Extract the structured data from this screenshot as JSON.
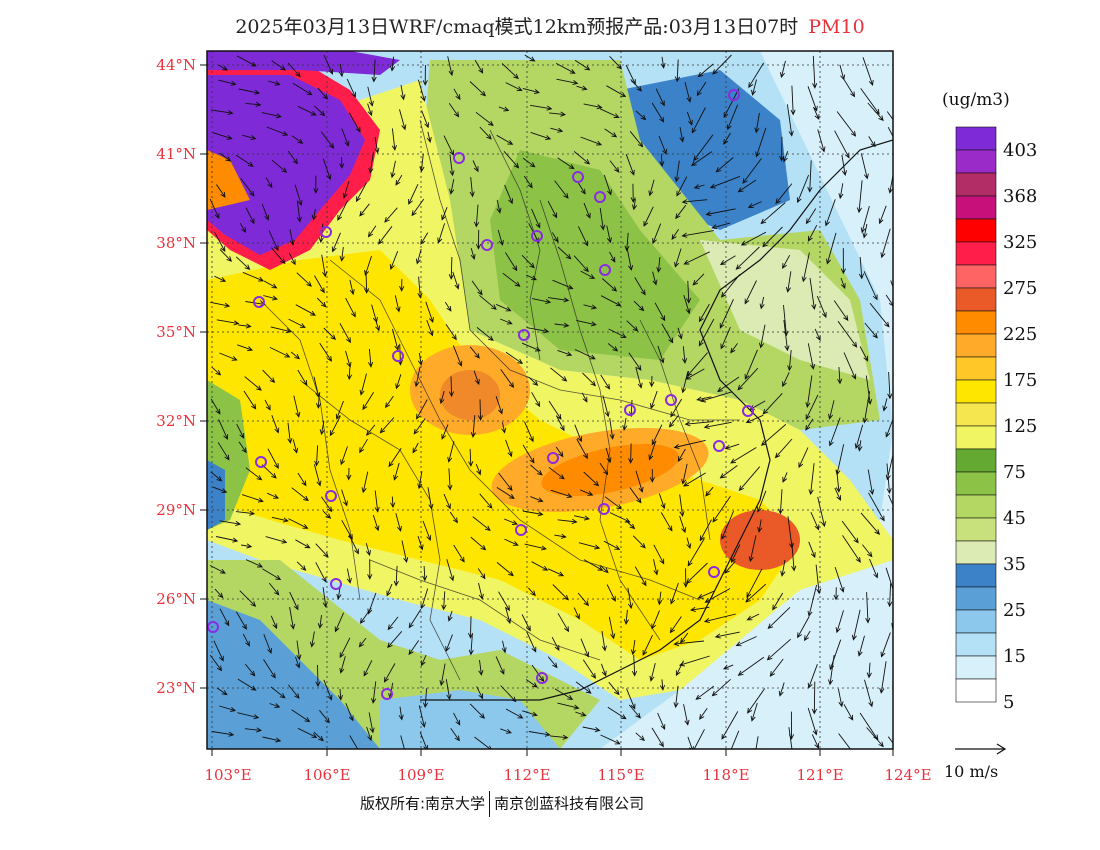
{
  "title": "2025年03月13日WRF/cmaq模式12km预报产品:03月13日07时",
  "variable": "PM10",
  "units": "(ug/m3)",
  "legend_levels": [
    "403",
    "368",
    "325",
    "275",
    "225",
    "175",
    "125",
    "75",
    "45",
    "35",
    "25",
    "15",
    "5"
  ],
  "legend_colors": [
    "#7e2ad6",
    "#9a2bc8",
    "#b22d66",
    "#c8107a",
    "#ff0000",
    "#ff1e4a",
    "#ff6464",
    "#e95a28",
    "#ff8c00",
    "#ffaa28",
    "#ffc828",
    "#ffe600",
    "#f5e650",
    "#f0f564",
    "#64aa32",
    "#8cc346",
    "#b4d764",
    "#c8e17d",
    "#dcebb4",
    "#3c82c8",
    "#5aa0d7",
    "#8cc8eb",
    "#b4e1f5",
    "#d7f0fa",
    "#ffffff"
  ],
  "lat_labels": [
    "44°N",
    "41°N",
    "38°N",
    "35°N",
    "32°N",
    "29°N",
    "26°N",
    "23°N"
  ],
  "lon_labels": [
    "103°E",
    "106°E",
    "109°E",
    "112°E",
    "115°E",
    "118°E",
    "121°E",
    "124°E"
  ],
  "wind_reference": "10 m/s",
  "footer": {
    "left": "版权所有:南京大学",
    "right": "南京创蓝科技有限公司"
  }
}
